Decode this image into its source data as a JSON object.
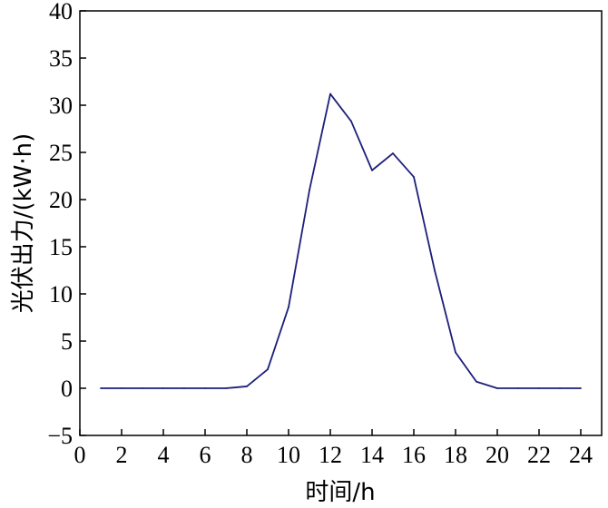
{
  "chart_data": {
    "type": "line",
    "xlabel": "时间/h",
    "ylabel": "光伏出力/(kW·h)",
    "xlim": [
      0,
      25
    ],
    "ylim": [
      -5,
      40
    ],
    "xticks": [
      0,
      2,
      4,
      6,
      8,
      10,
      12,
      14,
      16,
      18,
      20,
      22,
      24
    ],
    "yticks": [
      -5,
      0,
      5,
      10,
      15,
      20,
      25,
      30,
      35,
      40
    ],
    "grid": false,
    "legend": "none",
    "series": [
      {
        "color": "#1c1f7a",
        "x": [
          1,
          2,
          3,
          4,
          5,
          6,
          7,
          8,
          9,
          10,
          11,
          12,
          13,
          14,
          15,
          16,
          17,
          18,
          19,
          20,
          21,
          22,
          23,
          24
        ],
        "y": [
          0,
          0,
          0,
          0,
          0,
          0,
          0,
          0.2,
          2,
          8.6,
          21,
          31.2,
          28.3,
          23.1,
          24.9,
          22.4,
          12.5,
          3.8,
          0.7,
          0,
          0,
          0,
          0,
          0
        ]
      }
    ]
  }
}
